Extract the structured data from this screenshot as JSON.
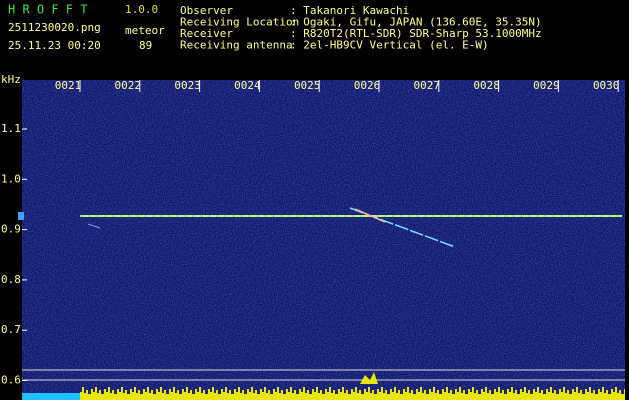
{
  "header": {
    "app_name": "H R O F F T",
    "version": "1.0.0",
    "file": "2511230020.png",
    "mode": "meteor",
    "datetime": "25.11.23 00:20",
    "count": "89"
  },
  "station": [
    {
      "label": "Observer",
      "value": ": Takanori Kawachi"
    },
    {
      "label": "Receiving Location",
      "value": ": Ogaki, Gifu, JAPAN (136.60E, 35.35N)"
    },
    {
      "label": "Receiver",
      "value": ": R820T2(RTL-SDR) SDR-Sharp 53.1000MHz"
    },
    {
      "label": "Receiving antenna",
      "value": ": 2el-HB9CV Vertical (el. E-W)"
    }
  ],
  "axis": {
    "unit": "kHz",
    "frequencies": [
      "1.1",
      "1.0",
      "0.9",
      "0.8",
      "0.7",
      "0.6"
    ],
    "times": [
      "0021",
      "0022",
      "0023",
      "0024",
      "0025",
      "0026",
      "0027",
      "0028",
      "0029",
      "0030"
    ]
  }
}
